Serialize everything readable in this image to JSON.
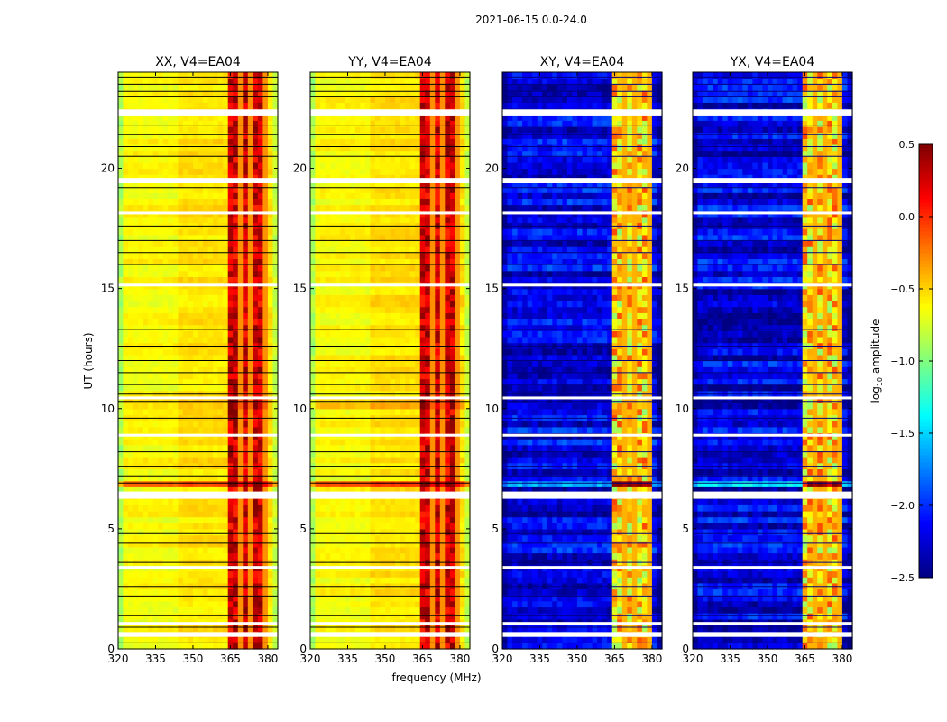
{
  "chart_data": {
    "type": "heatmap",
    "title": "2021-06-15 0.0-24.0",
    "xlabel": "frequency (MHz)",
    "ylabel": "UT (hours)",
    "xlim": [
      320,
      384
    ],
    "ylim": [
      0,
      24
    ],
    "xticks": [
      "320",
      "335",
      "350",
      "365",
      "380"
    ],
    "xtick_values": [
      320,
      335,
      350,
      365,
      380
    ],
    "yticks": [
      "0",
      "5",
      "10",
      "15",
      "20"
    ],
    "ytick_values": [
      0,
      5,
      10,
      15,
      20
    ],
    "colorbar": {
      "label": "log10 amplitude",
      "label_main": "log",
      "label_sub": "10",
      "label_rest": " amplitude",
      "range": [
        -2.5,
        0.5
      ],
      "ticks": [
        "0.5",
        "0.0",
        "−0.5",
        "−1.0",
        "−1.5",
        "−2.0",
        "−2.5"
      ],
      "tick_values": [
        0.5,
        0.0,
        -0.5,
        -1.0,
        -1.5,
        -2.0,
        -2.5
      ],
      "colormap": "jet"
    },
    "band_mhz": [
      363,
      381
    ],
    "band_gaps_mhz": [
      368.5,
      373.5,
      378.5
    ],
    "flagged_hours": [
      [
        22.2,
        22.45
      ],
      [
        19.38,
        19.6
      ],
      [
        18.1,
        18.2
      ],
      [
        15.1,
        15.2
      ],
      [
        10.4,
        10.5
      ],
      [
        8.85,
        8.95
      ],
      [
        6.25,
        6.55
      ],
      [
        3.35,
        3.45
      ],
      [
        1.05,
        1.12
      ],
      [
        0.5,
        0.7
      ]
    ],
    "dark_line_hours": [
      23.8,
      23.5,
      23.2,
      23.0,
      21.8,
      21.4,
      20.9,
      20.5,
      19.2,
      17.6,
      17.0,
      16.5,
      16.0,
      13.3,
      12.6,
      12.0,
      11.5,
      11.0,
      10.6,
      10.3,
      9.6,
      8.2,
      7.6,
      7.2,
      6.9,
      4.8,
      4.4,
      3.6,
      2.6,
      2.2,
      1.4,
      0.9,
      0.25
    ],
    "panels": [
      {
        "title": "XX, V4=EA04",
        "base_level": -0.55,
        "band_level": 0.15,
        "edge_level": -0.8
      },
      {
        "title": "YY, V4=EA04",
        "base_level": -0.55,
        "band_level": 0.15,
        "edge_level": -0.8
      },
      {
        "title": "XY, V4=EA04",
        "base_level": -2.2,
        "band_level": -0.7,
        "edge_level": -2.4
      },
      {
        "title": "YX, V4=EA04",
        "base_level": -2.2,
        "band_level": -0.7,
        "edge_level": -2.4
      }
    ]
  }
}
